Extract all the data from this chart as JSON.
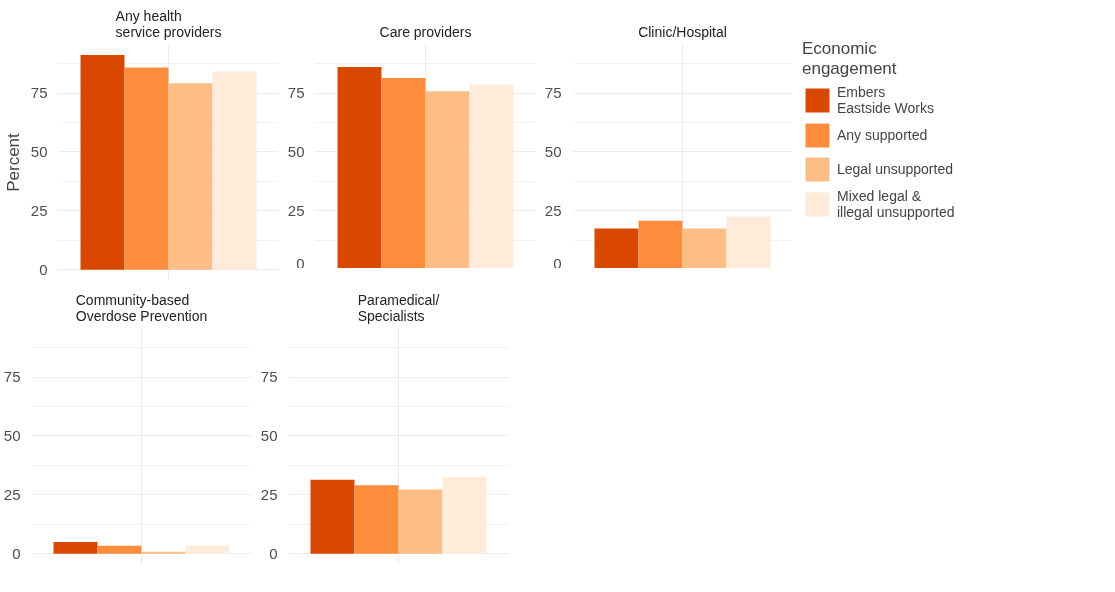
{
  "chart_data": [
    {
      "type": "bar",
      "title": "Any health service providers",
      "ylabel": "Percent",
      "categories": [
        null
      ],
      "ylim": [
        -4.6,
        95.6
      ],
      "yticks": [
        0,
        25,
        50,
        75
      ],
      "grid": true,
      "series": [
        {
          "color": "#d94801",
          "values": [
            91.1
          ]
        },
        {
          "color": "#fd8d3c",
          "values": [
            85.8
          ]
        },
        {
          "color": "#fdbe85",
          "values": [
            79.1
          ]
        },
        {
          "color": "#feebd9",
          "values": [
            84.1
          ]
        }
      ]
    },
    {
      "type": "bar",
      "title": "Care providers",
      "categories": [
        null
      ],
      "ylim": [
        -4.6,
        95.6
      ],
      "yticks": [
        0,
        25,
        50,
        75
      ],
      "grid": true,
      "series": [
        {
          "color": "#d94801",
          "values": [
            86.1
          ]
        },
        {
          "color": "#fd8d3c",
          "values": [
            81.4
          ]
        },
        {
          "color": "#fdbe85",
          "values": [
            75.7
          ]
        },
        {
          "color": "#feebd9",
          "values": [
            78.6
          ]
        }
      ]
    },
    {
      "type": "bar",
      "title": "Clinic/Hospital",
      "legend_title": "Economic engagement",
      "categories": [
        null
      ],
      "ylim": [
        -4.6,
        95.6
      ],
      "yticks": [
        0,
        25,
        50,
        75
      ],
      "grid": true,
      "legend": "right",
      "series": [
        {
          "name": "Embers Eastside Works",
          "color": "#d94801",
          "values": [
            17.5
          ]
        },
        {
          "name": "Any supported",
          "color": "#fd8d3c",
          "values": [
            20.8
          ]
        },
        {
          "name": "Legal unsupported",
          "color": "#fdbe85",
          "values": [
            17.5
          ]
        },
        {
          "name": "Mixed legal & illegal unsupported",
          "color": "#feebd9",
          "values": [
            22.5
          ]
        }
      ]
    },
    {
      "type": "bar",
      "title": "Community-based Overdose Prevention",
      "categories": [
        null
      ],
      "ylim": [
        -4.6,
        95.6
      ],
      "yticks": [
        0,
        25,
        50,
        75
      ],
      "grid": true,
      "series": [
        {
          "color": "#d94801",
          "values": [
            5.0
          ]
        },
        {
          "color": "#fd8d3c",
          "values": [
            3.4
          ]
        },
        {
          "color": "#fdbe85",
          "values": [
            0.8
          ]
        },
        {
          "color": "#feebd9",
          "values": [
            3.5
          ]
        }
      ]
    },
    {
      "type": "bar",
      "title": "Paramedical/ Specialists",
      "categories": [
        null
      ],
      "ylim": [
        -4.6,
        95.6
      ],
      "yticks": [
        0,
        25,
        50,
        75
      ],
      "grid": true,
      "series": [
        {
          "color": "#d94801",
          "values": [
            31.4
          ]
        },
        {
          "color": "#fd8d3c",
          "values": [
            29.0
          ]
        },
        {
          "color": "#fdbe85",
          "values": [
            27.2
          ]
        },
        {
          "color": "#feebd9",
          "values": [
            32.6
          ]
        }
      ]
    }
  ]
}
